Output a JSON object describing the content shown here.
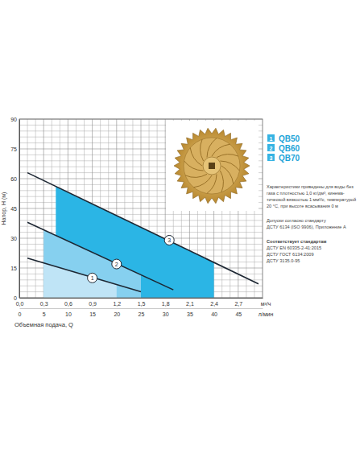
{
  "chart_data": {
    "type": "line",
    "x_label": "Объемная подача, Q",
    "y_label": "Напор, H (м)",
    "x_unit": "м³/ч",
    "x2_unit": "л/мин",
    "xlim": [
      0,
      3
    ],
    "xticks": [
      {
        "value": 0,
        "label": "0,0"
      },
      {
        "value": 0.3,
        "label": "0,3"
      },
      {
        "value": 0.6,
        "label": "0,6"
      },
      {
        "value": 0.9,
        "label": "0,9"
      },
      {
        "value": 1.2,
        "label": "1,2"
      },
      {
        "value": 1.5,
        "label": "1,5"
      },
      {
        "value": 1.8,
        "label": "1,8"
      },
      {
        "value": 2.1,
        "label": "2,1"
      },
      {
        "value": 2.4,
        "label": "2,4"
      },
      {
        "value": 2.7,
        "label": "2,7"
      }
    ],
    "x2lim": [
      0,
      50
    ],
    "x2ticks": [
      0,
      5,
      10,
      15,
      20,
      25,
      30,
      35,
      40,
      45
    ],
    "ylim": [
      0,
      90
    ],
    "yticks": [
      0,
      15,
      30,
      45,
      60,
      75,
      90
    ],
    "grid": true,
    "legend": "top-right",
    "series": [
      {
        "name": "QB50",
        "label": "1",
        "color": "#bfe4f6",
        "x": [
          0.1,
          1.5
        ],
        "values": [
          20,
          3
        ],
        "range": [
          0.3,
          1.2
        ],
        "label_x": 0.9,
        "label_y": 10
      },
      {
        "name": "QB60",
        "label": "2",
        "color": "#86d0ef",
        "x": [
          0.1,
          1.9
        ],
        "values": [
          38,
          4
        ],
        "range": [
          0.3,
          1.5
        ],
        "label_x": 1.2,
        "label_y": 17
      },
      {
        "name": "QB70",
        "label": "3",
        "color": "#2bb5e5",
        "x": [
          0.1,
          2.95
        ],
        "values": [
          63,
          7
        ],
        "range": [
          0.45,
          2.4
        ],
        "label_x": 1.85,
        "label_y": 29
      }
    ],
    "notes": [
      [
        "Характеристики приведены для воды без",
        "газа с плотностью 1,0 кг/дм³, кинема-",
        "тической вязкостью 1 мм²/с, температурой",
        "20 °C, при высоте всасывания 0 м"
      ],
      [
        "Допуски согласно стандарту",
        "ДСТУ 6134 (ISO 9906), Приложение А"
      ],
      [
        "Соответствует стандартам",
        "ДСТУ EN 60335-2-41:2015",
        "ДСТУ ГОСТ 6134:2009",
        "ДСТУ 3135.0-95"
      ]
    ]
  }
}
